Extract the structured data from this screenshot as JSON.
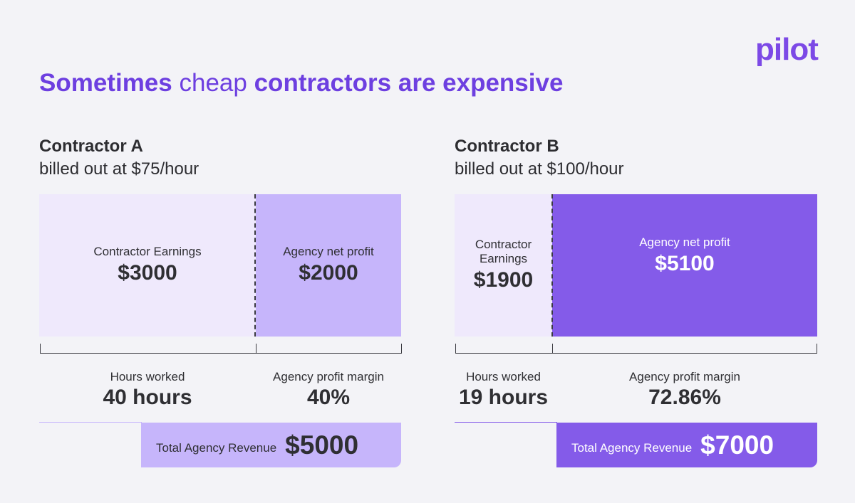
{
  "brand": {
    "logo": "pilot"
  },
  "headline": {
    "part1": "Sometimes",
    "part2": "cheap",
    "part3": "contractors are expensive"
  },
  "contractor_a": {
    "name": "Contractor A",
    "rate": "billed out at $75/hour",
    "earnings_label": "Contractor Earnings",
    "earnings_value": "$3000",
    "profit_label": "Agency net profit",
    "profit_value": "$2000",
    "hours_label": "Hours worked",
    "hours_value": "40 hours",
    "margin_label": "Agency profit margin",
    "margin_value": "40%",
    "total_label": "Total Agency Revenue",
    "total_value": "$5000"
  },
  "contractor_b": {
    "name": "Contractor B",
    "rate": "billed out at $100/hour",
    "earnings_label": "Contractor Earnings",
    "earnings_value": "$1900",
    "profit_label": "Agency net profit",
    "profit_value": "$5100",
    "hours_label": "Hours worked",
    "hours_value": "19 hours",
    "margin_label": "Agency profit margin",
    "margin_value": "72.86%",
    "total_label": "Total Agency Revenue",
    "total_value": "$7000"
  },
  "colors": {
    "background": "#f3f3f7",
    "accent": "#7c49e6",
    "earnings_fill": "#efe9fc",
    "profit_a_fill": "#c6b5fb",
    "profit_b_fill": "#845be9",
    "total_a_fill": "#c6b5fb",
    "total_b_fill": "#845be9"
  }
}
